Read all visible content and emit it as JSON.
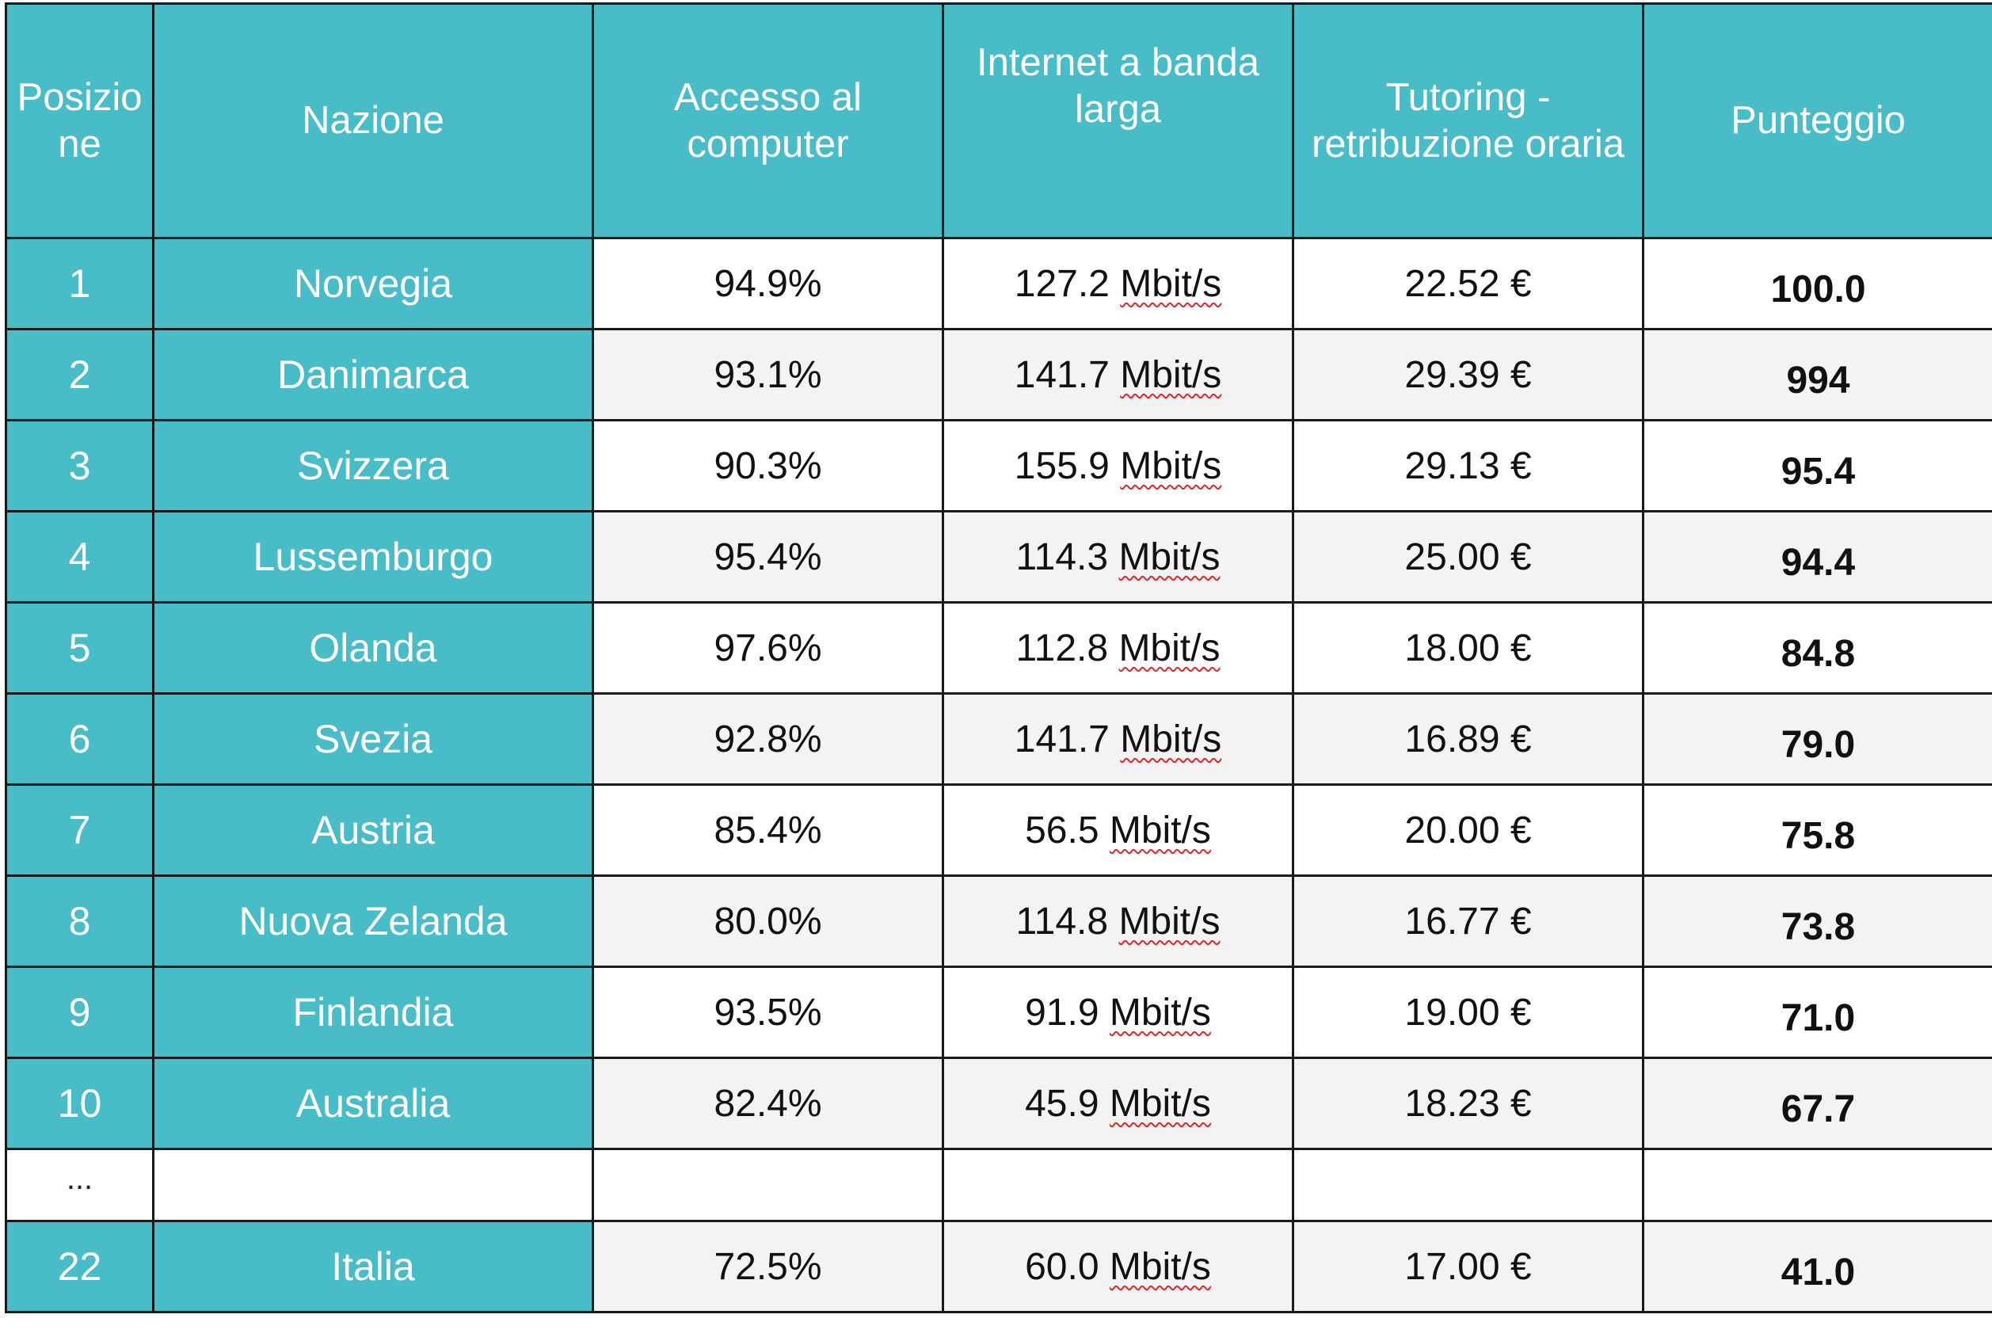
{
  "table": {
    "headers": {
      "position": "Posizione",
      "position_line1": "Posizio",
      "position_line2": "ne",
      "country": "Nazione",
      "computer_line1": "Accesso al",
      "computer_line2": "computer",
      "internet_line1": "Internet a banda",
      "internet_line2": "larga",
      "tutoring_line1": "Tutoring -",
      "tutoring_line2": "retribuzione oraria",
      "score": "Punteggio"
    },
    "unit": "Mbit/s",
    "rows": [
      {
        "pos": "1",
        "country": "Norvegia",
        "computer": "94.9%",
        "internet": "127.2",
        "tutoring": "22.52 €",
        "score": "100.0"
      },
      {
        "pos": "2",
        "country": "Danimarca",
        "computer": "93.1%",
        "internet": "141.7",
        "tutoring": "29.39 €",
        "score": "994"
      },
      {
        "pos": "3",
        "country": "Svizzera",
        "computer": "90.3%",
        "internet": "155.9",
        "tutoring": "29.13 €",
        "score": "95.4"
      },
      {
        "pos": "4",
        "country": "Lussemburgo",
        "computer": "95.4%",
        "internet": "114.3",
        "tutoring": "25.00 €",
        "score": "94.4"
      },
      {
        "pos": "5",
        "country": "Olanda",
        "computer": "97.6%",
        "internet": "112.8",
        "tutoring": "18.00 €",
        "score": "84.8"
      },
      {
        "pos": "6",
        "country": "Svezia",
        "computer": "92.8%",
        "internet": "141.7",
        "tutoring": "16.89 €",
        "score": "79.0"
      },
      {
        "pos": "7",
        "country": "Austria",
        "computer": "85.4%",
        "internet": "56.5",
        "tutoring": "20.00 €",
        "score": "75.8"
      },
      {
        "pos": "8",
        "country": "Nuova Zelanda",
        "computer": "80.0%",
        "internet": "114.8",
        "tutoring": "16.77 €",
        "score": "73.8"
      },
      {
        "pos": "9",
        "country": "Finlandia",
        "computer": "93.5%",
        "internet": "91.9",
        "tutoring": "19.00 €",
        "score": "71.0"
      },
      {
        "pos": "10",
        "country": "Australia",
        "computer": "82.4%",
        "internet": "45.9",
        "tutoring": "18.23 €",
        "score": "67.7"
      }
    ],
    "ellipsis": "...",
    "last_row": {
      "pos": "22",
      "country": "Italia",
      "computer": "72.5%",
      "internet": "60.0",
      "tutoring": "17.00 €",
      "score": "41.0"
    }
  }
}
